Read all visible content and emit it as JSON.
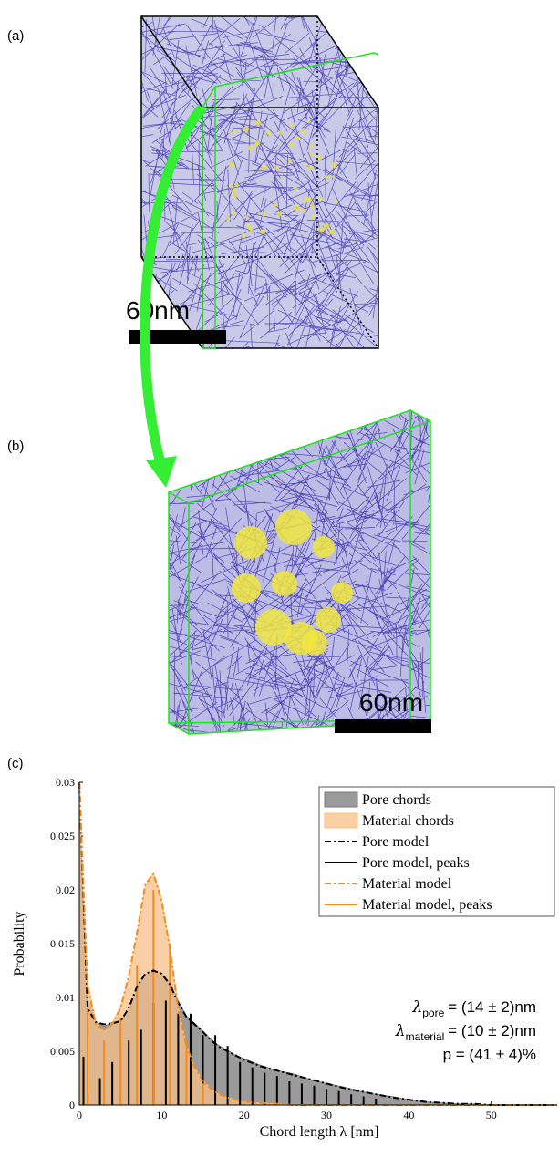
{
  "panel_a": {
    "label": "(a)",
    "scale_bar": "60nm"
  },
  "panel_b": {
    "label": "(b)",
    "scale_bar": "60nm"
  },
  "panel_c": {
    "label": "(c)"
  },
  "chart_data": {
    "type": "area",
    "x_label": "Chord length λ [nm]",
    "y_label": "Probability",
    "xlim": [
      0,
      58
    ],
    "ylim": [
      0,
      0.03
    ],
    "xticks": [
      0,
      10,
      20,
      30,
      40,
      50
    ],
    "yticks": [
      0,
      0.005,
      0.01,
      0.015,
      0.02,
      0.025,
      0.03
    ],
    "legend": "top-right",
    "x": [
      0,
      1,
      2,
      3,
      4,
      5,
      6,
      7,
      8,
      9,
      10,
      11,
      12,
      13,
      14,
      15,
      16,
      17,
      18,
      19,
      20,
      22,
      24,
      26,
      28,
      30,
      32,
      34,
      36,
      38,
      40,
      42,
      44,
      46,
      48,
      50,
      52,
      54,
      56,
      58
    ],
    "series": [
      {
        "name": "Pore chords",
        "style": "area",
        "color": "#7a7a7a",
        "values": [
          0.027,
          0.0098,
          0.0078,
          0.0073,
          0.0077,
          0.0079,
          0.0088,
          0.0108,
          0.0121,
          0.0124,
          0.0123,
          0.0114,
          0.0097,
          0.0083,
          0.0076,
          0.0069,
          0.0061,
          0.0055,
          0.0051,
          0.0046,
          0.0043,
          0.0037,
          0.0032,
          0.0029,
          0.0024,
          0.002,
          0.0017,
          0.0013,
          0.001,
          0.0008,
          0.0005,
          0.0003,
          0.0002,
          0.0001,
          0.0001,
          0,
          0,
          0,
          0,
          0
        ]
      },
      {
        "name": "Material chords",
        "style": "area",
        "color": "#f7c088",
        "values": [
          0.028,
          0.0115,
          0.0078,
          0.0068,
          0.0076,
          0.0092,
          0.0118,
          0.0158,
          0.0203,
          0.0216,
          0.0192,
          0.0147,
          0.0092,
          0.0056,
          0.0035,
          0.0023,
          0.0015,
          0.001,
          0.0007,
          0.0005,
          0.0003,
          0.0002,
          0.0001,
          0,
          0,
          0,
          0,
          0,
          0,
          0,
          0,
          0,
          0,
          0,
          0,
          0,
          0,
          0,
          0,
          0
        ]
      },
      {
        "name": "Pore model",
        "style": "dashdot",
        "color": "#000000",
        "values": [
          0.03,
          0.009,
          0.0077,
          0.0075,
          0.0076,
          0.0078,
          0.009,
          0.011,
          0.0122,
          0.0125,
          0.0122,
          0.0112,
          0.0095,
          0.0082,
          0.0075,
          0.0068,
          0.006,
          0.0054,
          0.005,
          0.0046,
          0.0042,
          0.0036,
          0.0032,
          0.0028,
          0.0024,
          0.002,
          0.0016,
          0.0013,
          0.001,
          0.0007,
          0.0005,
          0.0003,
          0.0002,
          0.0001,
          0.0001,
          0,
          0,
          0,
          0,
          0
        ]
      },
      {
        "name": "Pore model, peaks",
        "style": "stems",
        "color": "#000000",
        "x": [
          0.5,
          2.5,
          4,
          6,
          7.5,
          9,
          10.5,
          12,
          13.5,
          15,
          16.5,
          18,
          19.5,
          21,
          22.5,
          24,
          25.5,
          27,
          28.5,
          30,
          31.5,
          33,
          34.5,
          36
        ],
        "values": [
          0.0045,
          0.0025,
          0.004,
          0.006,
          0.007,
          0.0095,
          0.0097,
          0.0085,
          0.0085,
          0.0065,
          0.0065,
          0.0055,
          0.004,
          0.0035,
          0.003,
          0.0027,
          0.0022,
          0.002,
          0.0018,
          0.0015,
          0.0013,
          0.001,
          0.0008,
          0.0006
        ]
      },
      {
        "name": "Material model",
        "style": "dashdot",
        "color": "#f28a1e",
        "values": [
          0.03,
          0.011,
          0.0075,
          0.007,
          0.0075,
          0.009,
          0.012,
          0.016,
          0.0205,
          0.0215,
          0.019,
          0.0145,
          0.009,
          0.0055,
          0.0035,
          0.0022,
          0.0015,
          0.001,
          0.0007,
          0.0005,
          0.0003,
          0.0002,
          0.0001,
          0,
          0,
          0,
          0,
          0,
          0,
          0,
          0,
          0,
          0,
          0,
          0,
          0,
          0,
          0,
          0,
          0
        ]
      },
      {
        "name": "Material model, peaks",
        "style": "stems",
        "color": "#f28a1e",
        "x": [
          1,
          3,
          5,
          7,
          9,
          11,
          13,
          15
        ],
        "values": [
          0.009,
          0.006,
          0.008,
          0.013,
          0.02,
          0.015,
          0.006,
          0.002
        ]
      }
    ],
    "annotations": [
      {
        "symbol": "λ",
        "sub": "pore",
        "text": "= (14 ± 2)nm"
      },
      {
        "symbol": "λ",
        "sub": "material",
        "text": "= (10 ± 2)nm"
      },
      {
        "text": "p = (41 ± 4)%"
      }
    ]
  }
}
